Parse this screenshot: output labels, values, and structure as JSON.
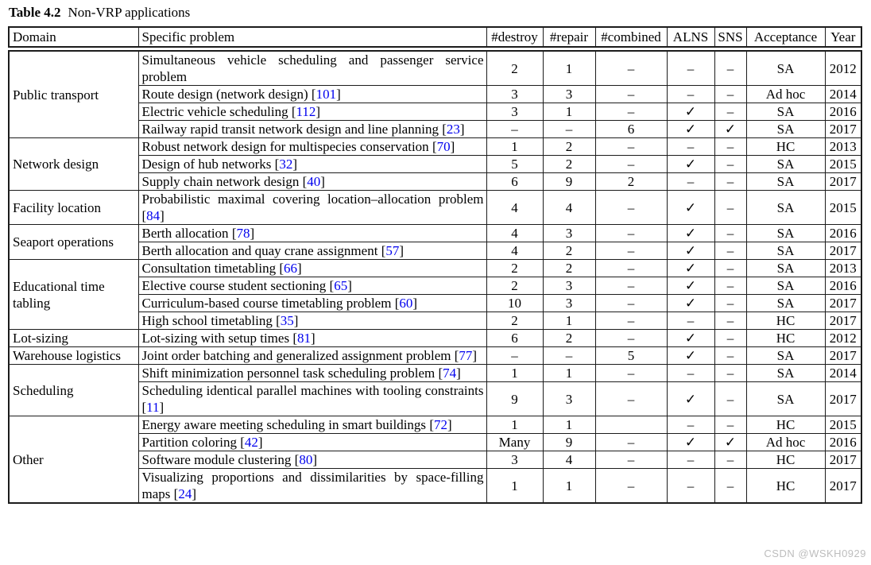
{
  "title": {
    "label": "Table 4.2",
    "caption": "Non-VRP applications"
  },
  "watermark": "CSDN @WSKH0929",
  "citation_brackets": {
    "open": " [",
    "close": "]"
  },
  "colors": {
    "citation_link": "#0000EE",
    "border": "#1c1c1c",
    "watermark_gray": "#bdbdbd"
  },
  "table": {
    "headers": [
      "Domain",
      "Specific problem",
      "#destroy",
      "#repair",
      "#combined",
      "ALNS",
      "SNS",
      "Acceptance",
      "Year"
    ],
    "groups": [
      {
        "domain": "Public transport",
        "rows": [
          {
            "problem": "Simultaneous vehicle scheduling and passenger service problem",
            "cite": null,
            "destroy": "2",
            "repair": "1",
            "combined": "–",
            "alns": "–",
            "sns": "–",
            "acceptance": "SA",
            "year": "2012"
          },
          {
            "problem": "Route design (network design)",
            "cite": "101",
            "destroy": "3",
            "repair": "3",
            "combined": "–",
            "alns": "–",
            "sns": "–",
            "acceptance": "Ad hoc",
            "year": "2014"
          },
          {
            "problem": "Electric vehicle scheduling",
            "cite": "112",
            "destroy": "3",
            "repair": "1",
            "combined": "–",
            "alns": "✓",
            "sns": "–",
            "acceptance": "SA",
            "year": "2016"
          },
          {
            "problem": "Railway rapid transit network design and line planning",
            "cite": "23",
            "destroy": "–",
            "repair": "–",
            "combined": "6",
            "alns": "✓",
            "sns": "✓",
            "acceptance": "SA",
            "year": "2017"
          }
        ]
      },
      {
        "domain": "Network design",
        "rows": [
          {
            "problem": "Robust network design for multispecies conservation",
            "cite": "70",
            "destroy": "1",
            "repair": "2",
            "combined": "–",
            "alns": "–",
            "sns": "–",
            "acceptance": "HC",
            "year": "2013"
          },
          {
            "problem": "Design of hub networks",
            "cite": "32",
            "destroy": "5",
            "repair": "2",
            "combined": "–",
            "alns": "✓",
            "sns": "–",
            "acceptance": "SA",
            "year": "2015"
          },
          {
            "problem": "Supply chain network design",
            "cite": "40",
            "destroy": "6",
            "repair": "9",
            "combined": "2",
            "alns": "–",
            "sns": "–",
            "acceptance": "SA",
            "year": "2017"
          }
        ]
      },
      {
        "domain": "Facility location",
        "rows": [
          {
            "problem": "Probabilistic maximal covering location–allocation problem",
            "cite": "84",
            "destroy": "4",
            "repair": "4",
            "combined": "–",
            "alns": "✓",
            "sns": "–",
            "acceptance": "SA",
            "year": "2015"
          }
        ]
      },
      {
        "domain": "Seaport operations",
        "rows": [
          {
            "problem": "Berth allocation",
            "cite": "78",
            "destroy": "4",
            "repair": "3",
            "combined": "–",
            "alns": "✓",
            "sns": "–",
            "acceptance": "SA",
            "year": "2016"
          },
          {
            "problem": "Berth allocation and quay crane assignment",
            "cite": "57",
            "destroy": "4",
            "repair": "2",
            "combined": "–",
            "alns": "✓",
            "sns": "–",
            "acceptance": "SA",
            "year": "2017"
          }
        ]
      },
      {
        "domain": "Educational time tabling",
        "rows": [
          {
            "problem": "Consultation timetabling",
            "cite": "66",
            "destroy": "2",
            "repair": "2",
            "combined": "–",
            "alns": "✓",
            "sns": "–",
            "acceptance": "SA",
            "year": "2013"
          },
          {
            "problem": "Elective course student sectioning",
            "cite": "65",
            "destroy": "2",
            "repair": "3",
            "combined": "–",
            "alns": "✓",
            "sns": "–",
            "acceptance": "SA",
            "year": "2016"
          },
          {
            "problem": "Curriculum-based course timetabling problem",
            "cite": "60",
            "destroy": "10",
            "repair": "3",
            "combined": "–",
            "alns": "✓",
            "sns": "–",
            "acceptance": "SA",
            "year": "2017"
          },
          {
            "problem": "High school timetabling",
            "cite": "35",
            "destroy": "2",
            "repair": "1",
            "combined": "–",
            "alns": "–",
            "sns": "–",
            "acceptance": "HC",
            "year": "2017"
          }
        ]
      },
      {
        "domain": "Lot-sizing",
        "rows": [
          {
            "problem": "Lot-sizing with setup times",
            "cite": "81",
            "destroy": "6",
            "repair": "2",
            "combined": "–",
            "alns": "✓",
            "sns": "–",
            "acceptance": "HC",
            "year": "2012"
          }
        ]
      },
      {
        "domain": "Warehouse logistics",
        "rows": [
          {
            "problem": "Joint order batching and generalized assignment problem",
            "cite": "77",
            "destroy": "–",
            "repair": "–",
            "combined": "5",
            "alns": "✓",
            "sns": "–",
            "acceptance": "SA",
            "year": "2017"
          }
        ]
      },
      {
        "domain": "Scheduling",
        "rows": [
          {
            "problem": "Shift minimization personnel task scheduling problem",
            "cite": "74",
            "destroy": "1",
            "repair": "1",
            "combined": "–",
            "alns": "–",
            "sns": "–",
            "acceptance": "SA",
            "year": "2014"
          },
          {
            "problem": "Scheduling identical parallel machines with tooling constraints",
            "cite": "11",
            "destroy": "9",
            "repair": "3",
            "combined": "–",
            "alns": "✓",
            "sns": "–",
            "acceptance": "SA",
            "year": "2017"
          }
        ]
      },
      {
        "domain": "Other",
        "rows": [
          {
            "problem": "Energy aware meeting scheduling in smart buildings",
            "cite": "72",
            "destroy": "1",
            "repair": "1",
            "combined": "",
            "alns": "–",
            "sns": "–",
            "acceptance": "HC",
            "year": "2015"
          },
          {
            "problem": "Partition coloring",
            "cite": "42",
            "destroy": "Many",
            "repair": "9",
            "combined": "–",
            "alns": "✓",
            "sns": "✓",
            "acceptance": "Ad hoc",
            "year": "2016"
          },
          {
            "problem": "Software module clustering",
            "cite": "80",
            "destroy": "3",
            "repair": "4",
            "combined": "–",
            "alns": "–",
            "sns": "–",
            "acceptance": "HC",
            "year": "2017"
          },
          {
            "problem": "Visualizing proportions and dissimilarities by space-filling maps",
            "cite": "24",
            "destroy": "1",
            "repair": "1",
            "combined": "–",
            "alns": "–",
            "sns": "–",
            "acceptance": "HC",
            "year": "2017"
          }
        ]
      }
    ]
  }
}
